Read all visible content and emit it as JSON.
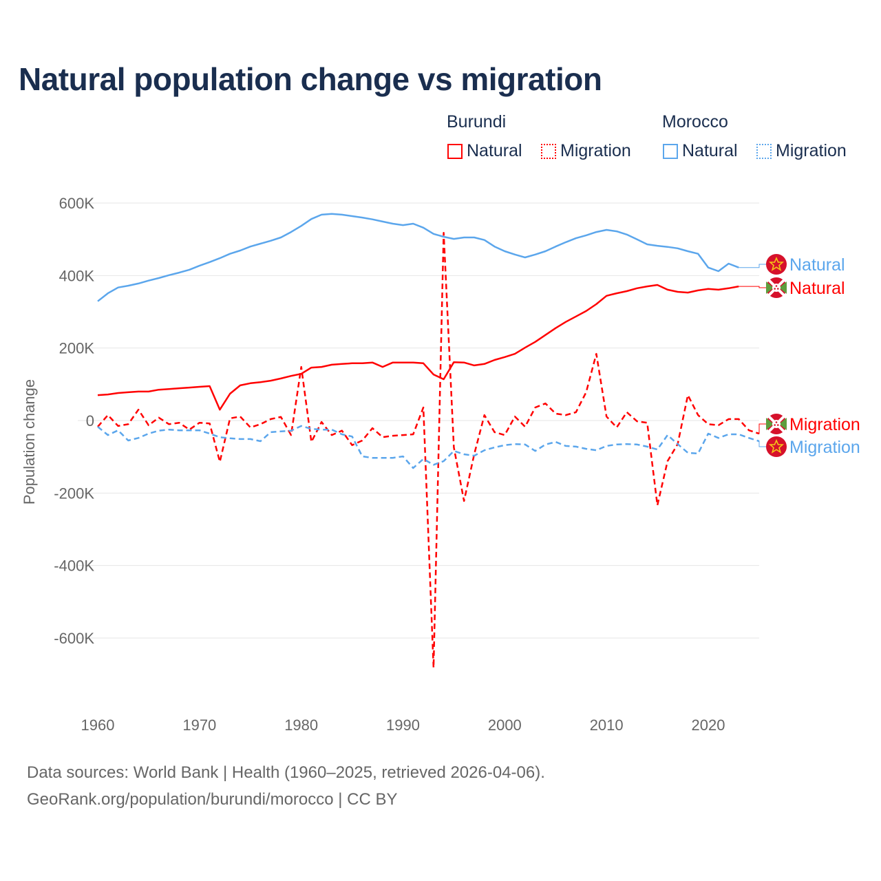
{
  "title": "Natural population change vs migration",
  "legend": {
    "groups": [
      {
        "name": "Burundi",
        "items": [
          {
            "label": "Natural",
            "style": "solid"
          },
          {
            "label": "Migration",
            "style": "dotted"
          }
        ],
        "color": "#ff0000"
      },
      {
        "name": "Morocco",
        "items": [
          {
            "label": "Natural",
            "style": "solid"
          },
          {
            "label": "Migration",
            "style": "dotted"
          }
        ],
        "color": "#5ba6ec"
      }
    ]
  },
  "source": {
    "line1": "Data sources: World Bank | Health (1960–2025, retrieved 2026-04-06).",
    "line2": "GeoRank.org/population/burundi/morocco | CC BY"
  },
  "chart_data": {
    "type": "line",
    "title": "Natural population change vs migration",
    "xlabel": "",
    "ylabel": "Population change",
    "xlim": [
      1960,
      2025
    ],
    "ylim": [
      -700000,
      600000
    ],
    "x_ticks": [
      1960,
      1970,
      1980,
      1990,
      2000,
      2010,
      2020
    ],
    "x_tick_labels": [
      "1960",
      "1970",
      "1980",
      "1990",
      "2000",
      "2010",
      "2020"
    ],
    "y_ticks": [
      600000,
      400000,
      200000,
      0,
      -200000,
      -400000,
      -600000
    ],
    "y_tick_labels": [
      "600K",
      "400K",
      "200K",
      "0",
      "-200K",
      "-400K",
      "-600K"
    ],
    "grid": true,
    "legend_position": "top-right",
    "series": [
      {
        "name": "Morocco Natural",
        "end_label": "Natural",
        "country": "morocco",
        "color": "#5ba6ec",
        "dash": "solid",
        "start_year": 1960,
        "values": [
          329,
          351,
          367,
          372,
          378,
          386,
          393,
          401,
          408,
          416,
          427,
          437,
          448,
          460,
          469,
          480,
          488,
          496,
          505,
          520,
          537,
          556,
          568,
          570,
          568,
          564,
          560,
          555,
          549,
          543,
          539,
          543,
          532,
          515,
          507,
          501,
          505,
          505,
          498,
          480,
          467,
          458,
          450,
          458,
          467,
          480,
          492,
          503,
          511,
          520,
          526,
          522,
          513,
          500,
          486,
          482,
          479,
          475,
          467,
          460,
          422,
          412,
          433,
          422
        ]
      },
      {
        "name": "Burundi Natural",
        "end_label": "Natural",
        "country": "burundi",
        "color": "#ff0000",
        "dash": "solid",
        "start_year": 1960,
        "values": [
          70,
          72,
          76,
          78,
          80,
          80,
          85,
          87,
          89,
          91,
          93,
          95,
          30,
          74,
          97,
          103,
          106,
          110,
          116,
          123,
          129,
          146,
          148,
          154,
          156,
          158,
          158,
          160,
          148,
          160,
          160,
          160,
          158,
          127,
          114,
          161,
          160,
          152,
          156,
          167,
          175,
          184,
          201,
          217,
          236,
          255,
          272,
          287,
          302,
          321,
          344,
          351,
          357,
          365,
          370,
          374,
          361,
          355,
          353,
          359,
          363,
          361,
          365,
          370
        ]
      },
      {
        "name": "Burundi Migration",
        "end_label": "Migration",
        "country": "burundi",
        "color": "#ff0000",
        "dash": "dashed",
        "start_year": 1960,
        "values": [
          -17,
          15,
          -15,
          -10,
          30,
          -13,
          8,
          -10,
          -6,
          -25,
          -6,
          -8,
          -114,
          6,
          11,
          -19,
          -10,
          4,
          10,
          -40,
          148,
          -59,
          -4,
          -40,
          -28,
          -68,
          -55,
          -21,
          -46,
          -42,
          -40,
          -38,
          36,
          -682,
          518,
          -74,
          -222,
          -93,
          15,
          -32,
          -40,
          11,
          -17,
          36,
          47,
          19,
          15,
          23,
          78,
          184,
          11,
          -19,
          23,
          -2,
          -6,
          -234,
          -112,
          -65,
          70,
          15,
          -10,
          -13,
          4,
          4,
          -27,
          -36
        ]
      },
      {
        "name": "Morocco Migration",
        "end_label": "Migration",
        "country": "morocco",
        "color": "#5ba6ec",
        "dash": "dashed",
        "start_year": 1960,
        "values": [
          -17,
          -40,
          -27,
          -55,
          -48,
          -36,
          -28,
          -25,
          -27,
          -27,
          -27,
          -36,
          -46,
          -49,
          -51,
          -51,
          -57,
          -32,
          -30,
          -28,
          -15,
          -23,
          -25,
          -25,
          -38,
          -44,
          -99,
          -103,
          -103,
          -103,
          -99,
          -131,
          -106,
          -122,
          -112,
          -84,
          -93,
          -97,
          -82,
          -74,
          -68,
          -65,
          -66,
          -84,
          -66,
          -59,
          -70,
          -72,
          -78,
          -82,
          -70,
          -66,
          -65,
          -66,
          -72,
          -80,
          -40,
          -65,
          -89,
          -91,
          -36,
          -48,
          -38,
          -38,
          -48,
          -57
        ]
      }
    ],
    "value_unit": "thousands"
  }
}
